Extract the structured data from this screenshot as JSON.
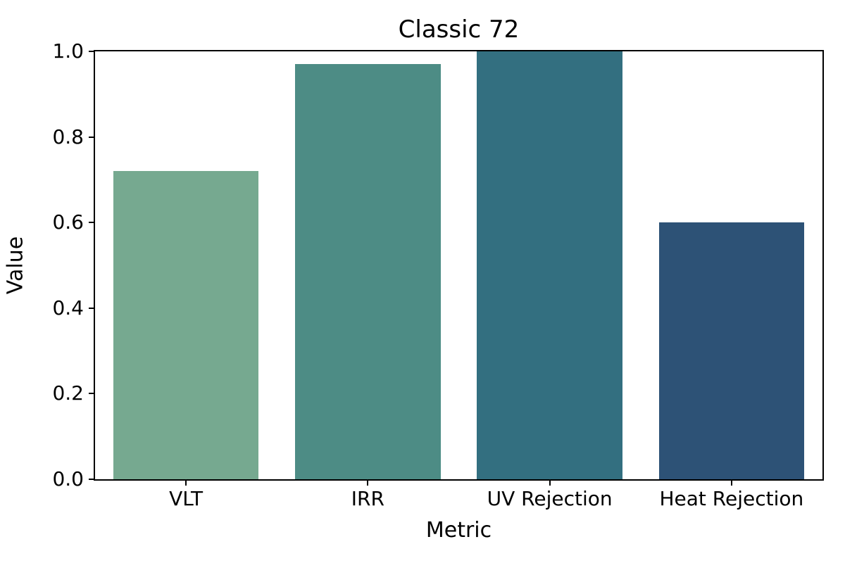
{
  "chart_data": {
    "type": "bar",
    "title": "Classic 72",
    "xlabel": "Metric",
    "ylabel": "Value",
    "categories": [
      "VLT",
      "IRR",
      "UV Rejection",
      "Heat Rejection"
    ],
    "values": [
      0.72,
      0.97,
      1.0,
      0.6
    ],
    "bar_colors": [
      "#76a990",
      "#4d8c85",
      "#336f80",
      "#2d5276"
    ],
    "ylim": [
      0.0,
      1.0
    ],
    "yticks": [
      0.0,
      0.2,
      0.4,
      0.6,
      0.8,
      1.0
    ],
    "ytick_labels": [
      "0.0",
      "0.2",
      "0.4",
      "0.6",
      "0.8",
      "1.0"
    ],
    "bar_width_fraction": 0.8,
    "grid": false,
    "legend_position": "none",
    "spine_color": "#000000",
    "background_color": "#ffffff"
  }
}
